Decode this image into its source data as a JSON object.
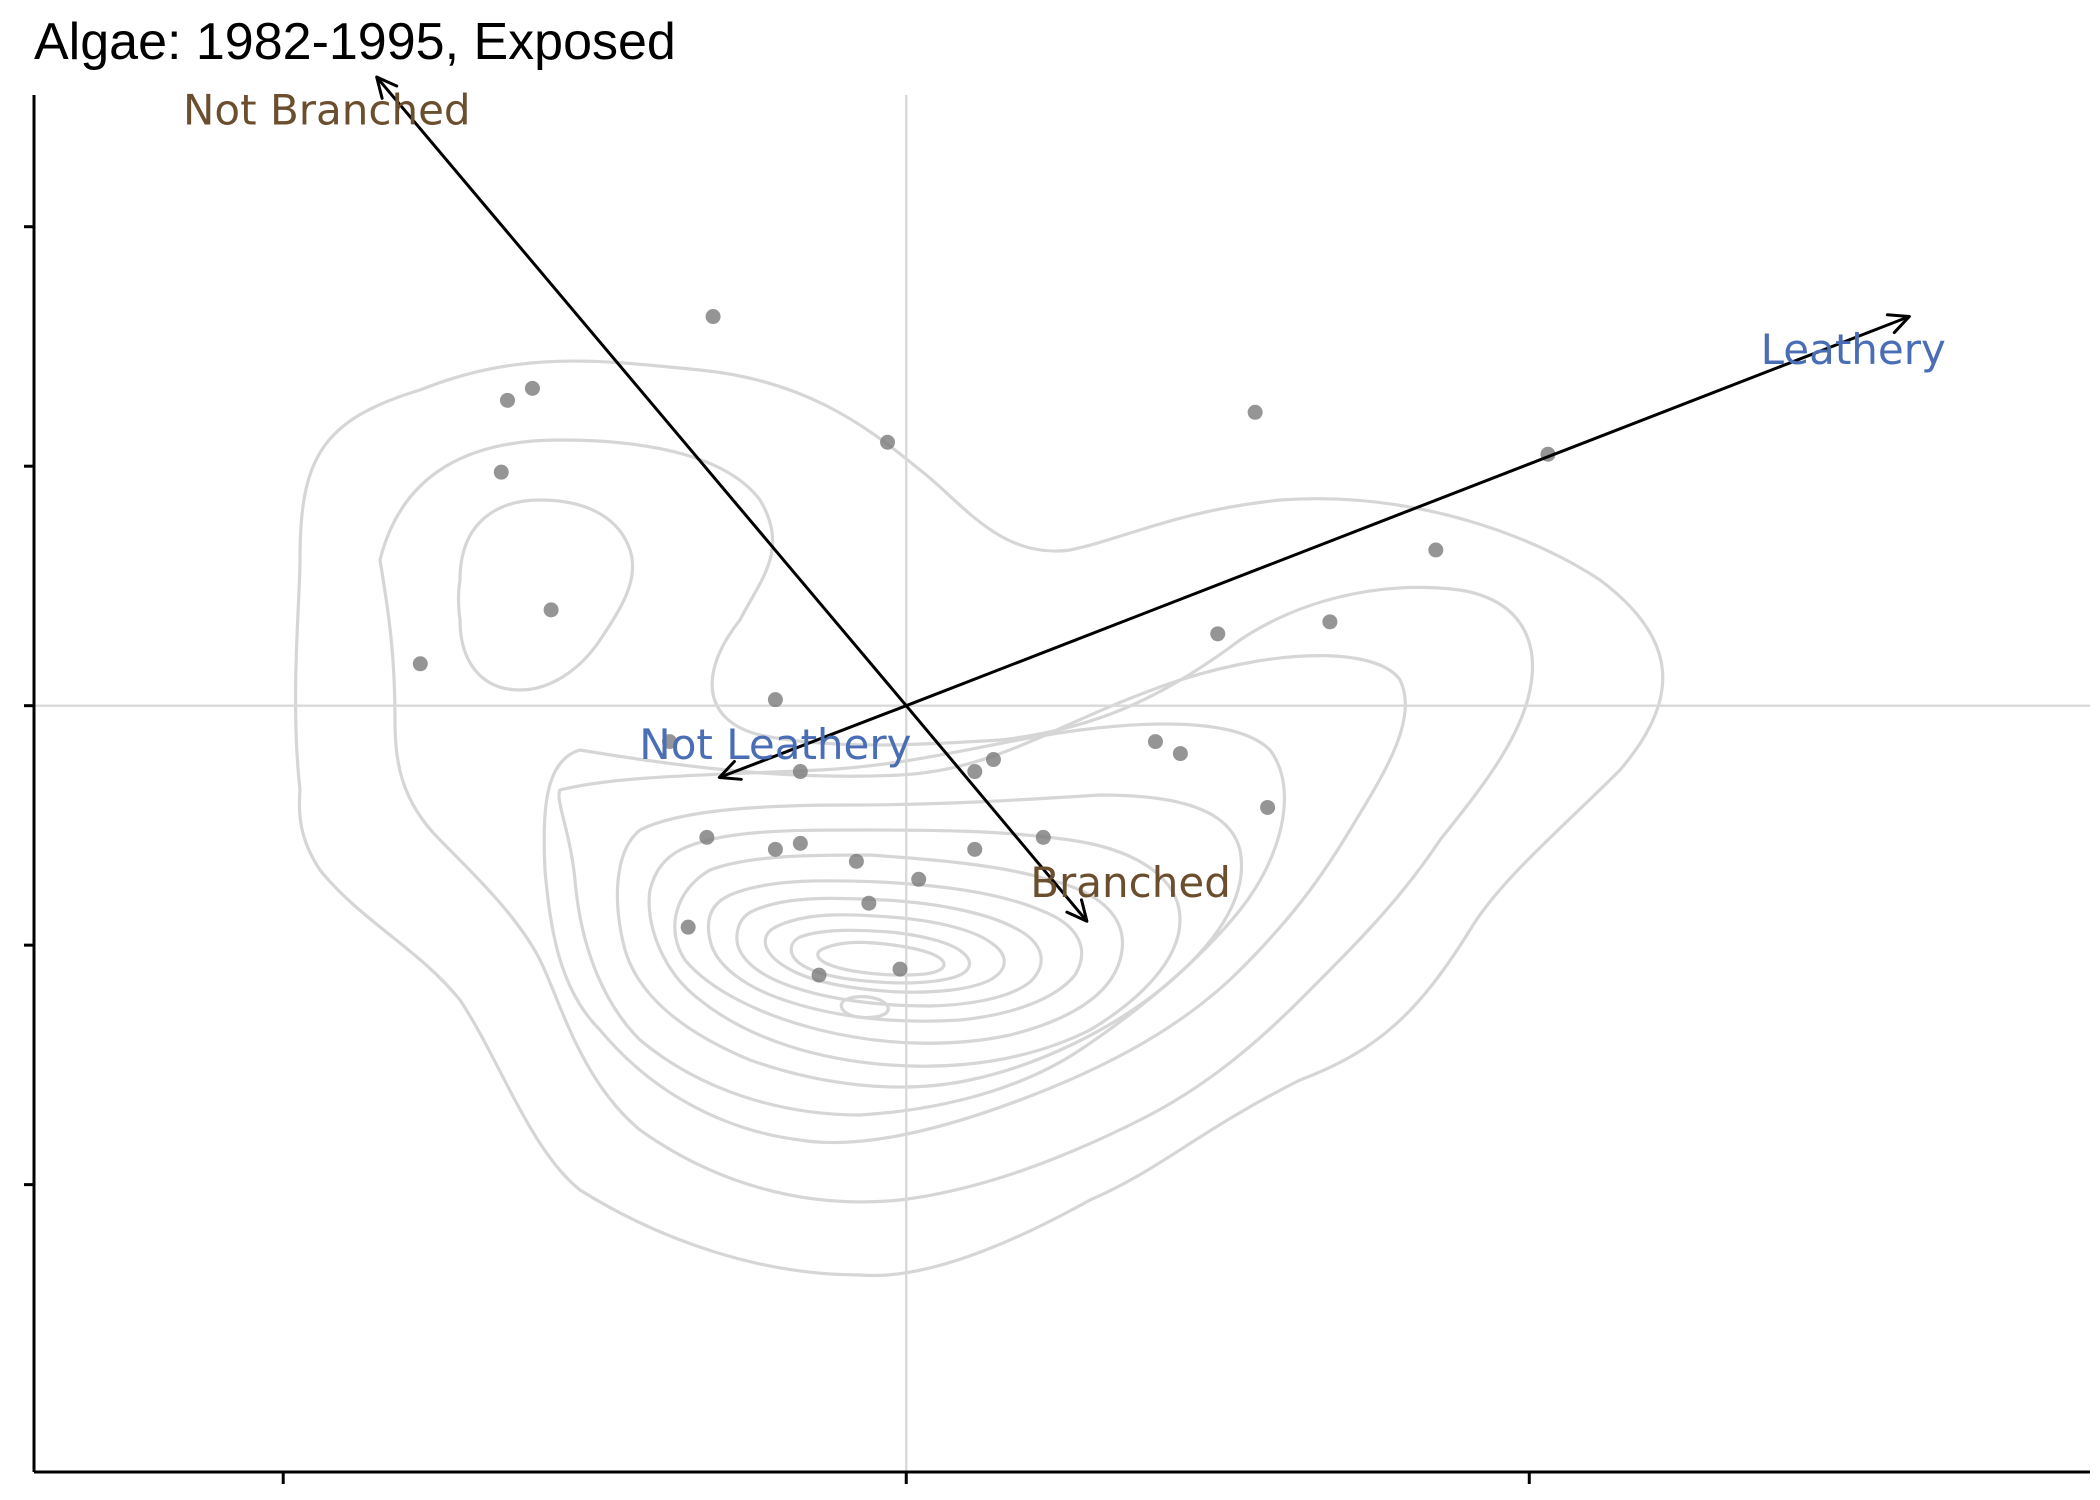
{
  "chart_data": {
    "type": "scatter",
    "title": "Algae: 1982-1995, Exposed",
    "xlabel": "",
    "ylabel": "",
    "xlim": [
      -1.4,
      1.9
    ],
    "ylim": [
      -1.28,
      1.02
    ],
    "x_ticks": [
      -1.0,
      0.0,
      1.0
    ],
    "y_ticks": [
      -0.8,
      -0.4,
      0.0,
      0.4,
      0.8,
      1.2
    ],
    "reference_lines": {
      "x": 0,
      "y": 0
    },
    "grid": false,
    "legend": "none",
    "colors": {
      "points": "#7a7a7a",
      "contours": "#d6d6d6",
      "reference_lines": "#d9d9d9",
      "branched_labels": "#6b4e2e",
      "leathery_labels": "#4a6eb5",
      "arrows": "#000000"
    },
    "points": [
      [
        -0.31,
        0.65
      ],
      [
        -0.64,
        0.51
      ],
      [
        -0.6,
        0.53
      ],
      [
        -0.65,
        0.39
      ],
      [
        -0.03,
        0.44
      ],
      [
        0.56,
        0.49
      ],
      [
        1.03,
        0.42
      ],
      [
        0.85,
        0.26
      ],
      [
        -0.57,
        0.16
      ],
      [
        -0.78,
        0.07
      ],
      [
        0.5,
        0.12
      ],
      [
        0.68,
        0.14
      ],
      [
        -0.21,
        0.01
      ],
      [
        -0.38,
        -0.06
      ],
      [
        -0.17,
        -0.11
      ],
      [
        0.4,
        -0.06
      ],
      [
        0.44,
        -0.08
      ],
      [
        0.11,
        -0.11
      ],
      [
        0.14,
        -0.09
      ],
      [
        0.58,
        -0.17
      ],
      [
        -0.32,
        -0.22
      ],
      [
        -0.21,
        -0.24
      ],
      [
        -0.17,
        -0.23
      ],
      [
        0.11,
        -0.24
      ],
      [
        0.22,
        -0.22
      ],
      [
        -0.08,
        -0.26
      ],
      [
        0.02,
        -0.29
      ],
      [
        -0.06,
        -0.33
      ],
      [
        -0.35,
        -0.37
      ],
      [
        -0.14,
        -0.45
      ],
      [
        -0.01,
        -0.44
      ]
    ],
    "vectors": [
      {
        "label": "Not Branched",
        "x": -0.85,
        "y": 1.05,
        "group": "branched"
      },
      {
        "label": "Branched",
        "x": 0.29,
        "y": -0.36,
        "group": "branched"
      },
      {
        "label": "Leathery",
        "x": 1.61,
        "y": 0.65,
        "group": "leathery"
      },
      {
        "label": "Not Leathery",
        "x": -0.3,
        "y": -0.12,
        "group": "leathery"
      }
    ],
    "label_positions": [
      {
        "label": "Not Branched",
        "x": -0.93,
        "y": 0.99
      },
      {
        "label": "Branched",
        "x": 0.36,
        "y": -0.3
      },
      {
        "label": "Leathery",
        "x": 1.52,
        "y": 0.59
      },
      {
        "label": "Not Leathery",
        "x": -0.21,
        "y": -0.07
      }
    ]
  }
}
